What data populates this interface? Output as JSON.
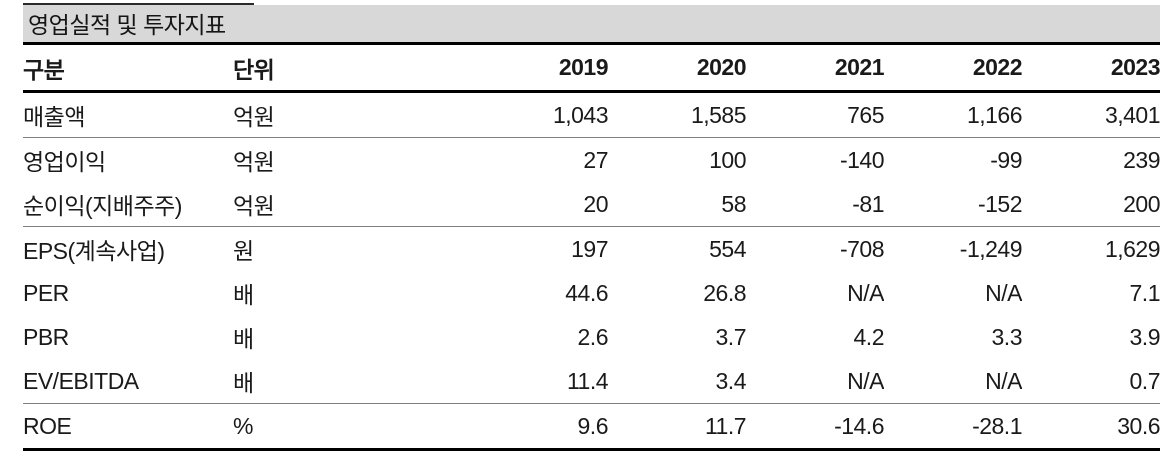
{
  "table": {
    "title": "영업실적 및 투자지표",
    "columns": [
      "구분",
      "단위",
      "2019",
      "2020",
      "2021",
      "2022",
      "2023"
    ],
    "rows": [
      {
        "label": "매출액",
        "unit": "억원",
        "values": [
          "1,043",
          "1,585",
          "765",
          "1,166",
          "3,401"
        ],
        "group_end": true
      },
      {
        "label": "영업이익",
        "unit": "억원",
        "values": [
          "27",
          "100",
          "-140",
          "-99",
          "239"
        ],
        "group_end": false
      },
      {
        "label": "순이익(지배주주)",
        "unit": "억원",
        "values": [
          "20",
          "58",
          "-81",
          "-152",
          "200"
        ],
        "group_end": true
      },
      {
        "label": "EPS(계속사업)",
        "unit": "원",
        "values": [
          "197",
          "554",
          "-708",
          "-1,249",
          "1,629"
        ],
        "group_end": false
      },
      {
        "label": "PER",
        "unit": "배",
        "values": [
          "44.6",
          "26.8",
          "N/A",
          "N/A",
          "7.1"
        ],
        "group_end": false
      },
      {
        "label": "PBR",
        "unit": "배",
        "values": [
          "2.6",
          "3.7",
          "4.2",
          "3.3",
          "3.9"
        ],
        "group_end": false
      },
      {
        "label": "EV/EBITDA",
        "unit": "배",
        "values": [
          "11.4",
          "3.4",
          "N/A",
          "N/A",
          "0.7"
        ],
        "group_end": true
      },
      {
        "label": "ROE",
        "unit": "%",
        "values": [
          "9.6",
          "11.7",
          "-14.6",
          "-28.1",
          "30.6"
        ],
        "group_end": false
      }
    ]
  },
  "colors": {
    "title_background": "#d8d8d8",
    "thick_rule": "#000000",
    "thin_rule": "#7f7f7f",
    "text": "#1a1a1a"
  },
  "chart_data": {
    "type": "table",
    "title": "영업실적 및 투자지표",
    "columns": [
      "구분",
      "단위",
      "2019",
      "2020",
      "2021",
      "2022",
      "2023"
    ],
    "rows": [
      [
        "매출액",
        "억원",
        "1,043",
        "1,585",
        "765",
        "1,166",
        "3,401"
      ],
      [
        "영업이익",
        "억원",
        "27",
        "100",
        "-140",
        "-99",
        "239"
      ],
      [
        "순이익(지배주주)",
        "억원",
        "20",
        "58",
        "-81",
        "-152",
        "200"
      ],
      [
        "EPS(계속사업)",
        "원",
        "197",
        "554",
        "-708",
        "-1,249",
        "1,629"
      ],
      [
        "PER",
        "배",
        "44.6",
        "26.8",
        "N/A",
        "N/A",
        "7.1"
      ],
      [
        "PBR",
        "배",
        "2.6",
        "3.7",
        "4.2",
        "3.3",
        "3.9"
      ],
      [
        "EV/EBITDA",
        "배",
        "11.4",
        "3.4",
        "N/A",
        "N/A",
        "0.7"
      ],
      [
        "ROE",
        "%",
        "9.6",
        "11.7",
        "-14.6",
        "-28.1",
        "30.6"
      ]
    ]
  }
}
